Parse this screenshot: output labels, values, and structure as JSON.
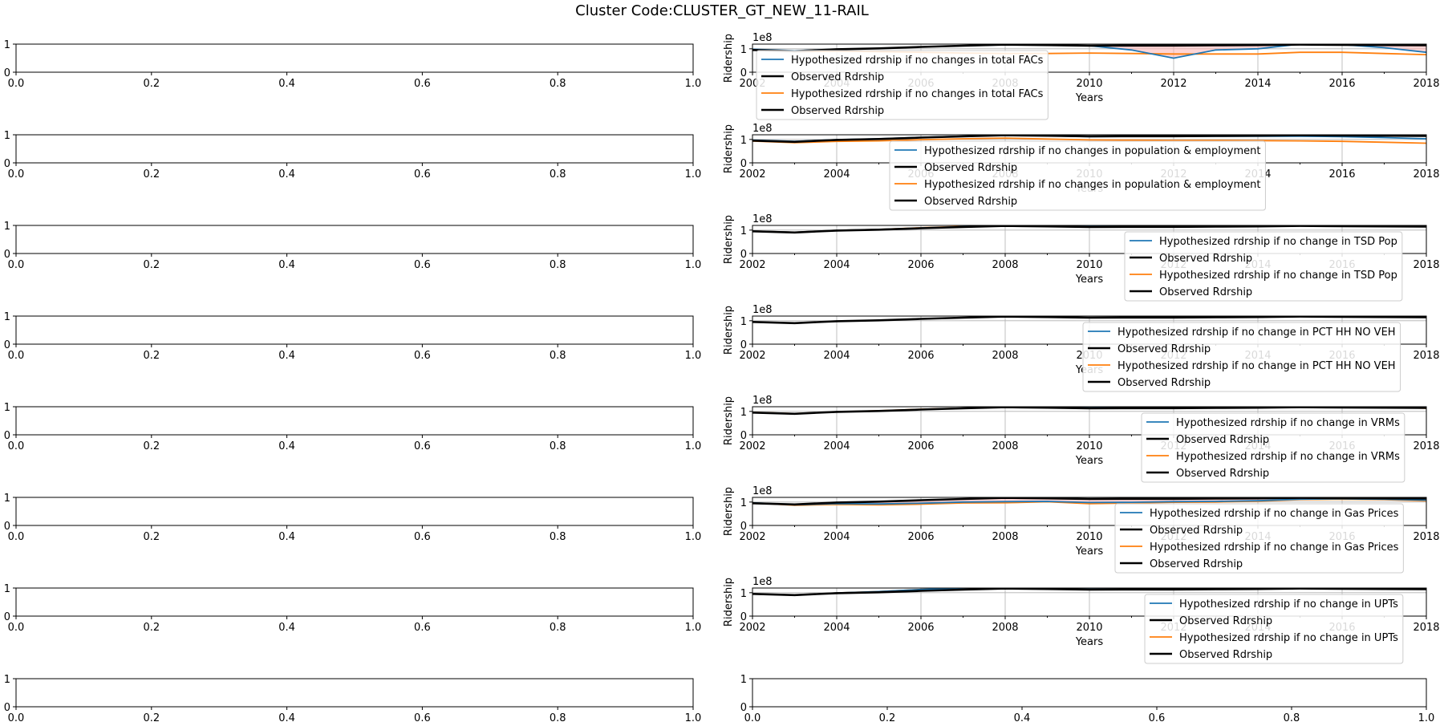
{
  "figure": {
    "title": "Cluster Code:CLUSTER_GT_NEW_11-RAIL"
  },
  "colors": {
    "blue": "#1f77b4",
    "orange": "#ff7f0e",
    "black": "#000000",
    "fill_red": "#ffb3b3",
    "grid": "#b0b0b0"
  },
  "empty_axes": {
    "y_ticks": [
      "0",
      "1"
    ],
    "x_ticks": [
      "0.0",
      "0.2",
      "0.4",
      "0.6",
      "0.8",
      "1.0"
    ]
  },
  "chart_data": {
    "type": "line",
    "years": [
      2002,
      2003,
      2004,
      2005,
      2006,
      2007,
      2008,
      2009,
      2010,
      2011,
      2012,
      2013,
      2014,
      2015,
      2016,
      2017,
      2018
    ],
    "x_ticks": [
      "2002",
      "2004",
      "2006",
      "2008",
      "2010",
      "2012",
      "2014",
      "2016",
      "2018"
    ],
    "y_ticks": [
      "0",
      "1"
    ],
    "y_offset_label": "1e8",
    "xlabel": "Years",
    "ylabel": "Ridership",
    "xlim": [
      2002,
      2018
    ],
    "ylim": [
      0,
      1.2
    ],
    "observed": [
      0.95,
      0.9,
      0.98,
      1.02,
      1.08,
      1.13,
      1.18,
      1.16,
      1.13,
      1.14,
      1.14,
      1.15,
      1.16,
      1.18,
      1.17,
      1.16,
      1.15
    ],
    "panels": [
      {
        "legend": [
          "Hypothesized rdrship if no changes in total FACs",
          "Observed Rdrship",
          "Hypothesized rdrship if no changes in total FACs",
          "Observed Rdrship"
        ],
        "blue": [
          0.98,
          0.92,
          0.98,
          1.02,
          1.08,
          1.13,
          1.17,
          1.16,
          1.13,
          0.95,
          0.6,
          0.95,
          1.0,
          1.2,
          1.18,
          1.05,
          0.85
        ],
        "orange": [
          0.95,
          0.88,
          0.9,
          0.88,
          0.85,
          0.82,
          0.8,
          0.8,
          0.82,
          0.8,
          0.78,
          0.78,
          0.78,
          0.85,
          0.85,
          0.8,
          0.75
        ],
        "fill": true
      },
      {
        "legend": [
          "Hypothesized rdrship if no changes in population & employment",
          "Observed Rdrship",
          "Hypothesized rdrship if no changes in population & employment",
          "Observed Rdrship"
        ],
        "blue": [
          0.97,
          0.92,
          0.99,
          1.03,
          1.09,
          1.14,
          1.18,
          1.16,
          1.12,
          1.13,
          1.13,
          1.14,
          1.14,
          1.14,
          1.12,
          1.08,
          1.03
        ],
        "orange": [
          0.93,
          0.86,
          0.92,
          0.94,
          0.99,
          1.03,
          1.06,
          1.02,
          0.98,
          0.97,
          0.96,
          0.96,
          0.95,
          0.94,
          0.92,
          0.88,
          0.84
        ],
        "fill": false
      },
      {
        "legend": [
          "Hypothesized rdrship if no change in TSD Pop",
          "Observed Rdrship",
          "Hypothesized rdrship if no change in TSD Pop",
          "Observed Rdrship"
        ],
        "blue": [
          0.96,
          0.91,
          0.99,
          1.03,
          1.09,
          1.15,
          1.2,
          1.19,
          1.17,
          1.18,
          1.19,
          1.2,
          1.21,
          1.21,
          1.2,
          1.19,
          1.18
        ],
        "orange": [
          0.96,
          0.91,
          0.99,
          1.03,
          1.1,
          1.16,
          1.21,
          1.21,
          1.19,
          1.2,
          1.21,
          1.22,
          1.22,
          1.22,
          1.21,
          1.2,
          1.19
        ],
        "fill": false
      },
      {
        "legend": [
          "Hypothesized rdrship if no change in PCT HH NO VEH",
          "Observed Rdrship",
          "Hypothesized rdrship if no change in PCT HH NO VEH",
          "Observed Rdrship"
        ],
        "blue": [
          0.95,
          0.9,
          0.98,
          1.02,
          1.08,
          1.13,
          1.18,
          1.16,
          1.13,
          1.14,
          1.14,
          1.15,
          1.16,
          1.18,
          1.17,
          1.16,
          1.15
        ],
        "orange": [
          0.95,
          0.9,
          0.98,
          1.02,
          1.08,
          1.13,
          1.18,
          1.16,
          1.13,
          1.14,
          1.14,
          1.15,
          1.16,
          1.18,
          1.17,
          1.16,
          1.15
        ],
        "fill": false
      },
      {
        "legend": [
          "Hypothesized rdrship if no change in VRMs",
          "Observed Rdrship",
          "Hypothesized rdrship if no change in VRMs",
          "Observed Rdrship"
        ],
        "blue": [
          0.95,
          0.9,
          0.98,
          1.02,
          1.08,
          1.14,
          1.19,
          1.18,
          1.15,
          1.17,
          1.18,
          1.19,
          1.2,
          1.22,
          1.21,
          1.19,
          1.17
        ],
        "orange": [
          0.96,
          0.91,
          0.98,
          1.03,
          1.09,
          1.14,
          1.2,
          1.18,
          1.15,
          1.16,
          1.17,
          1.18,
          1.19,
          1.22,
          1.21,
          1.18,
          1.14
        ],
        "fill": false
      },
      {
        "legend": [
          "Hypothesized rdrship if no change in Gas Prices",
          "Observed Rdrship",
          "Hypothesized rdrship if no change in Gas Prices",
          "Observed Rdrship"
        ],
        "blue": [
          0.97,
          0.88,
          0.93,
          0.92,
          0.95,
          1.0,
          1.02,
          1.03,
          0.98,
          0.99,
          1.02,
          1.03,
          1.06,
          1.12,
          1.14,
          1.12,
          1.08
        ],
        "orange": [
          0.97,
          0.86,
          0.9,
          0.88,
          0.91,
          0.96,
          0.97,
          1.01,
          0.93,
          0.96,
          0.99,
          1.0,
          1.04,
          1.1,
          1.12,
          1.1,
          1.05
        ],
        "fill": true
      },
      {
        "legend": [
          "Hypothesized rdrship if no change in UPTs",
          "Observed Rdrship",
          "Hypothesized rdrship if no change in UPTs",
          "Observed Rdrship"
        ],
        "blue": [
          0.95,
          0.9,
          0.99,
          1.05,
          1.14,
          1.2,
          1.24,
          1.24,
          1.24,
          1.25,
          1.26,
          1.26,
          1.27,
          1.27,
          1.27,
          1.27,
          1.26
        ],
        "orange": [
          0.95,
          0.9,
          0.99,
          1.05,
          1.14,
          1.2,
          1.24,
          1.25,
          1.25,
          1.26,
          1.27,
          1.27,
          1.28,
          1.28,
          1.28,
          1.28,
          1.27
        ],
        "fill": false
      }
    ]
  }
}
